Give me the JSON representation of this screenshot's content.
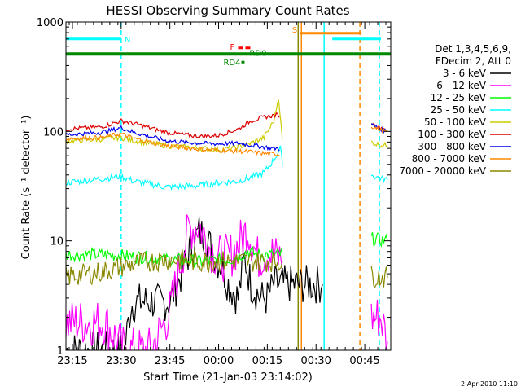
{
  "chart_data": {
    "type": "line",
    "title": "HESSI Observing Summary Count Rates",
    "xlabel": "Start Time (21-Jan-03 23:14:02)",
    "ylabel": "Count Rate (s⁻¹ detector⁻¹)",
    "y_scale": "log",
    "ylim": [
      1,
      1000
    ],
    "xlim_minutes": [
      -1,
      99
    ],
    "x_ticks": [
      {
        "label": "23:15",
        "minute": 1
      },
      {
        "label": "23:30",
        "minute": 16
      },
      {
        "label": "23:45",
        "minute": 31
      },
      {
        "label": "00:00",
        "minute": 46
      },
      {
        "label": "00:15",
        "minute": 61
      },
      {
        "label": "00:30",
        "minute": 76
      },
      {
        "label": "00:45",
        "minute": 91
      }
    ],
    "y_ticks": [
      {
        "label": "1",
        "value": 1
      },
      {
        "label": "10",
        "value": 10
      },
      {
        "label": "100",
        "value": 100
      },
      {
        "label": "1000",
        "value": 1000
      }
    ],
    "legend": {
      "placement": "right",
      "header": [
        "Det 1,3,4,5,6,9,",
        "FDecim 2, Att 0"
      ]
    },
    "series": [
      {
        "name": "3 - 6 keV",
        "color": "#000000",
        "x": [
          -1,
          17,
          19,
          22,
          25,
          28,
          31,
          34,
          37,
          40,
          42,
          45,
          47,
          49,
          52,
          54,
          56,
          59,
          61,
          63,
          65,
          66,
          76,
          78
        ],
        "y": [
          1,
          1,
          2.6,
          2.8,
          2.8,
          2.7,
          2.8,
          4.5,
          8,
          12,
          11,
          7,
          6,
          4,
          3,
          7,
          4,
          3,
          3,
          4,
          4,
          4,
          4,
          4
        ]
      },
      {
        "name": "6 - 12 keV",
        "color": "#ff00ff",
        "x": [
          -1,
          11,
          17,
          19,
          25,
          31,
          34,
          37,
          40,
          43,
          46,
          49,
          52,
          55,
          58,
          61,
          64,
          66,
          93,
          96,
          98
        ],
        "y": [
          1.8,
          1.8,
          1,
          1,
          1,
          2.2,
          6,
          13,
          14,
          9,
          7,
          7,
          9,
          13,
          7,
          8,
          7,
          7,
          2,
          2,
          1.2
        ]
      },
      {
        "name": "12 - 25 keV",
        "color": "#00ff00",
        "x": [
          -1,
          10,
          20,
          30,
          40,
          50,
          55,
          58,
          62,
          66,
          93,
          98
        ],
        "y": [
          7.5,
          7.5,
          7.2,
          6.8,
          6.5,
          6.8,
          8,
          7.5,
          7.5,
          7.5,
          10.5,
          10
        ]
      },
      {
        "name": "25 - 50 keV",
        "color": "#00ffff",
        "x": [
          -1,
          10,
          16,
          20,
          30,
          40,
          46,
          52,
          56,
          60,
          63,
          65,
          66,
          93,
          95,
          98
        ],
        "y": [
          34,
          37,
          39,
          35,
          31,
          32,
          34,
          35,
          38,
          42,
          55,
          70,
          45,
          40,
          38,
          36
        ]
      },
      {
        "name": "50 - 100 keV",
        "color": "#cccc00",
        "x": [
          -1,
          10,
          16,
          20,
          30,
          40,
          46,
          50,
          52,
          56,
          60,
          63,
          64.5,
          66,
          93,
          95,
          98
        ],
        "y": [
          82,
          85,
          88,
          82,
          74,
          70,
          68,
          70,
          72,
          78,
          88,
          125,
          205,
          62,
          80,
          76,
          74
        ]
      },
      {
        "name": "100 - 300 keV",
        "color": "#dd0000",
        "x": [
          -1,
          10,
          16,
          20,
          30,
          40,
          46,
          52,
          56,
          60,
          63,
          64.5,
          65,
          93,
          95,
          98
        ],
        "y": [
          105,
          110,
          125,
          118,
          98,
          90,
          92,
          105,
          125,
          135,
          140,
          142,
          120,
          120,
          110,
          104
        ]
      },
      {
        "name": "300 - 800 keV",
        "color": "#0000ee",
        "x": [
          -1,
          10,
          16,
          20,
          30,
          40,
          46,
          52,
          56,
          60,
          63,
          64.5,
          65,
          93,
          95,
          98
        ],
        "y": [
          93,
          98,
          108,
          98,
          82,
          78,
          77,
          78,
          75,
          72,
          70,
          70,
          68,
          115,
          108,
          100
        ]
      },
      {
        "name": "800 - 7000 keV",
        "color": "#ff8800",
        "x": [
          -1,
          10,
          16,
          20,
          30,
          40,
          46,
          52,
          56,
          60,
          63,
          64.5,
          65,
          93,
          95,
          98
        ],
        "y": [
          86,
          88,
          95,
          86,
          74,
          69,
          67,
          66,
          65,
          63,
          62,
          62,
          60,
          112,
          105,
          98
        ]
      },
      {
        "name": "7000 - 20000 keV",
        "color": "#888800",
        "x": [
          -1,
          10,
          20,
          30,
          40,
          50,
          55,
          60,
          63,
          66,
          93,
          98
        ],
        "y": [
          4.7,
          5.2,
          6.2,
          6.8,
          6.5,
          6.5,
          6.5,
          6.5,
          6.5,
          6.5,
          4.8,
          4.6
        ]
      }
    ],
    "flag_bars": [
      {
        "label": "N",
        "color": "#00ffff",
        "segments": [
          [
            -1,
            16
          ],
          [
            81,
            96
          ]
        ],
        "level": 700
      },
      {
        "label": "S",
        "color": "#ff8800",
        "segments": [
          [
            71,
            90
          ]
        ],
        "level": 790
      },
      {
        "label": "F",
        "color": "#ff0000",
        "segments": [
          [
            52,
            56
          ]
        ],
        "level": 580
      },
      {
        "label": "RD0",
        "color": "#008800",
        "segments": [
          [
            -1,
            99
          ]
        ],
        "level": 510
      },
      {
        "label": "RD4",
        "color": "#008800",
        "segments": [
          [
            53,
            54
          ]
        ],
        "level": 430
      }
    ],
    "vertical_markers": [
      {
        "minute": 16,
        "color": "#00ffff",
        "style": "dashed"
      },
      {
        "minute": 70.5,
        "color": "#888800",
        "style": "solid"
      },
      {
        "minute": 71.5,
        "color": "#ff8800",
        "style": "solid"
      },
      {
        "minute": 78.5,
        "color": "#00ffff",
        "style": "solid"
      },
      {
        "minute": 89.5,
        "color": "#ff8800",
        "style": "dashed"
      },
      {
        "minute": 95.5,
        "color": "#00ffff",
        "style": "dashed"
      }
    ]
  },
  "footer": {
    "date": "2-Apr-2010 11:10"
  }
}
